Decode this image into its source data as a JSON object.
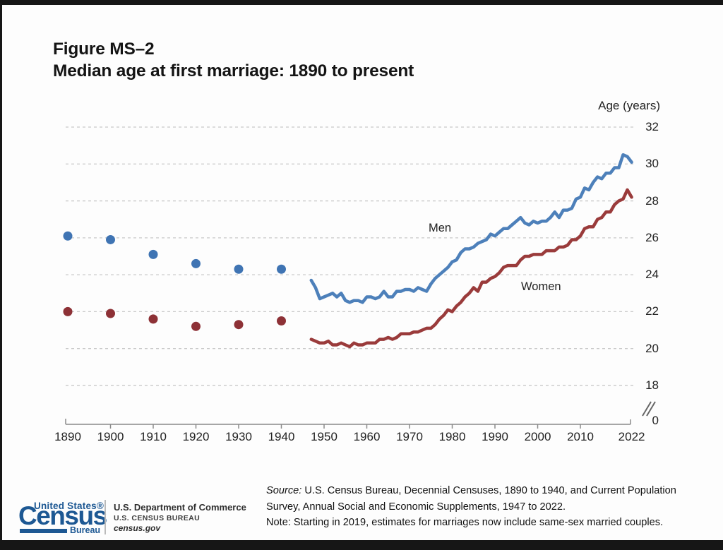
{
  "title": {
    "line1": "Figure MS–2",
    "line2": "Median age at first marriage: 1890 to present"
  },
  "chart_data": {
    "type": "line",
    "title": "Median age at first marriage: 1890 to present",
    "y_axis_label": "Age (years)",
    "y_ticks": [
      32,
      30,
      28,
      26,
      24,
      22,
      20,
      18
    ],
    "y_axis_break_zero": "0",
    "x_tick_years": [
      1890,
      1900,
      1910,
      1920,
      1930,
      1940,
      1950,
      1960,
      1970,
      1980,
      1990,
      2000,
      2010,
      2022
    ],
    "x_range": [
      1890,
      2022
    ],
    "grid": "dashed-horizontal",
    "legend_position": "inline-annotations",
    "series": [
      {
        "name": "Men",
        "style": "points",
        "color": "#3f74b3",
        "years": [
          1890,
          1900,
          1910,
          1920,
          1930,
          1940
        ],
        "values": [
          26.1,
          25.9,
          25.1,
          24.6,
          24.3,
          24.3
        ]
      },
      {
        "name": "Men",
        "style": "line",
        "color": "#4d80ba",
        "start_year": 1947,
        "values": [
          23.7,
          23.3,
          22.7,
          22.8,
          22.9,
          23.0,
          22.8,
          23.0,
          22.6,
          22.5,
          22.6,
          22.6,
          22.5,
          22.8,
          22.8,
          22.7,
          22.8,
          23.1,
          22.8,
          22.8,
          23.1,
          23.1,
          23.2,
          23.2,
          23.1,
          23.3,
          23.2,
          23.1,
          23.5,
          23.8,
          24.0,
          24.2,
          24.4,
          24.7,
          24.8,
          25.2,
          25.4,
          25.4,
          25.5,
          25.7,
          25.8,
          25.9,
          26.2,
          26.1,
          26.3,
          26.5,
          26.5,
          26.7,
          26.9,
          27.1,
          26.8,
          26.7,
          26.9,
          26.8,
          26.9,
          26.9,
          27.1,
          27.4,
          27.1,
          27.5,
          27.5,
          27.6,
          28.1,
          28.2,
          28.7,
          28.6,
          29.0,
          29.3,
          29.2,
          29.5,
          29.5,
          29.8,
          29.8,
          30.5,
          30.4,
          30.1
        ]
      },
      {
        "name": "Women",
        "style": "points",
        "color": "#8d3136",
        "years": [
          1890,
          1900,
          1910,
          1920,
          1930,
          1940
        ],
        "values": [
          22.0,
          21.9,
          21.6,
          21.2,
          21.3,
          21.5
        ]
      },
      {
        "name": "Women",
        "style": "line",
        "color": "#9a3b3b",
        "start_year": 1947,
        "values": [
          20.5,
          20.4,
          20.3,
          20.3,
          20.4,
          20.2,
          20.2,
          20.3,
          20.2,
          20.1,
          20.3,
          20.2,
          20.2,
          20.3,
          20.3,
          20.3,
          20.5,
          20.5,
          20.6,
          20.5,
          20.6,
          20.8,
          20.8,
          20.8,
          20.9,
          20.9,
          21.0,
          21.1,
          21.1,
          21.3,
          21.6,
          21.8,
          22.1,
          22.0,
          22.3,
          22.5,
          22.8,
          23.0,
          23.3,
          23.1,
          23.6,
          23.6,
          23.8,
          23.9,
          24.1,
          24.4,
          24.5,
          24.5,
          24.5,
          24.8,
          25.0,
          25.0,
          25.1,
          25.1,
          25.1,
          25.3,
          25.3,
          25.3,
          25.5,
          25.5,
          25.6,
          25.9,
          25.9,
          26.1,
          26.5,
          26.6,
          26.6,
          27.0,
          27.1,
          27.4,
          27.4,
          27.8,
          28.0,
          28.1,
          28.6,
          28.2
        ]
      }
    ]
  },
  "footer": {
    "source_prefix": "Source:",
    "source_line1": " U.S. Census Bureau, Decennial Censuses, 1890 to 1940, and Current Population",
    "source_line2": "Survey, Annual Social and Economic Supplements, 1947 to 2022.",
    "note_line": "Note: Starting in 2019, estimates for marriages now include same-sex married couples."
  },
  "logo": {
    "united_states": "United States®",
    "census": "Census",
    "bureau": "Bureau",
    "dept": "U.S. Department of Commerce",
    "bureau_caps": "U.S. CENSUS BUREAU",
    "site": "census.gov",
    "brand_color": "#1d5893"
  }
}
